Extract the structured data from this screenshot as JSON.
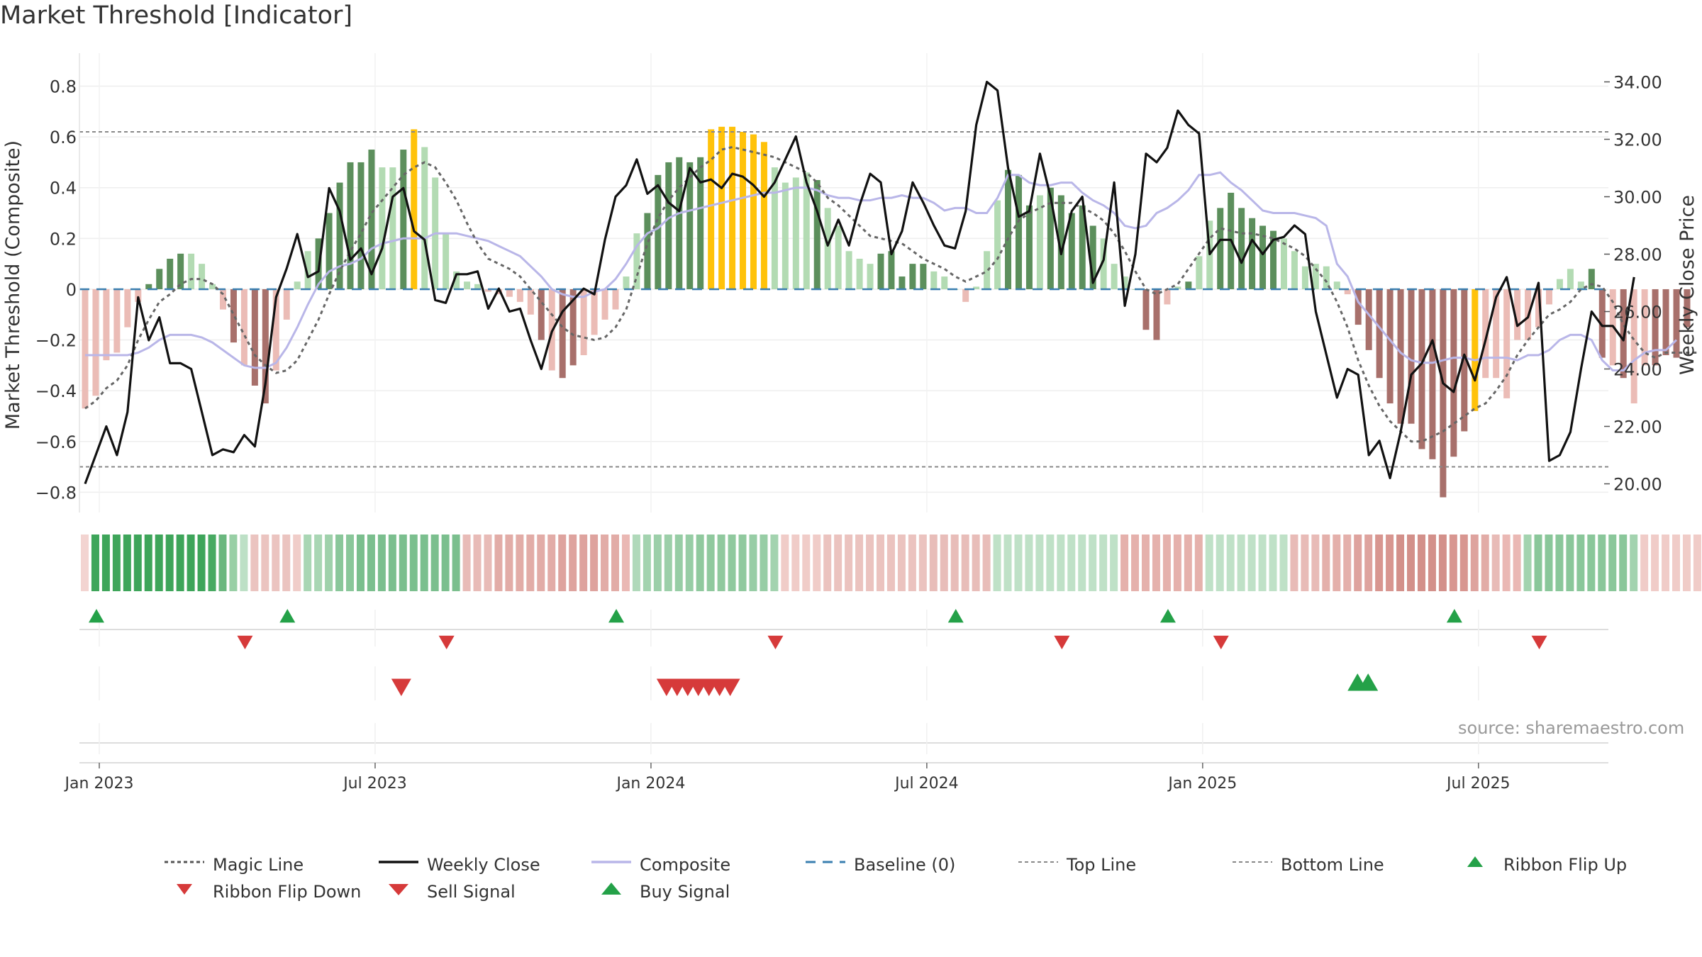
{
  "title": "Market Threshold [Indicator]",
  "source": "source: sharemaestro.com",
  "colors": {
    "grid": "#eeeeee",
    "strong_up": "#5c8f5c",
    "light_up": "#b3dbb3",
    "strong_down": "#a8706b",
    "light_down": "#ebbcb6",
    "highlight": "#ffc20a",
    "close": "#111111",
    "composite": "#b9b6e8",
    "magic": "#666666",
    "baseline": "#3a7fb0",
    "signal_green": "#24a148",
    "signal_red": "#d63a3a"
  },
  "chart_data": {
    "type": "bar+line",
    "title": "Market Threshold [Indicator]",
    "ylabel_left": "Market Threshold (Composite)",
    "ylabel_right": "Weekly Close Price",
    "ylim_left": [
      -0.88,
      0.93
    ],
    "ylim_right": [
      19.0,
      35.0
    ],
    "yticks_left": [
      0.8,
      0.6,
      0.4,
      0.2,
      0,
      -0.2,
      -0.4,
      -0.6,
      -0.8
    ],
    "yticks_left_labels": [
      "0.8",
      "0.6",
      "0.4",
      "0.2",
      "0",
      "−0.2",
      "−0.4",
      "−0.6",
      "−0.8"
    ],
    "yticks_right": [
      34.0,
      32.0,
      30.0,
      28.0,
      26.0,
      24.0,
      22.0,
      20.0
    ],
    "yticks_right_labels": [
      "34.00",
      "32.00",
      "30.00",
      "28.00",
      "26.00",
      "24.00",
      "22.00",
      "20.00"
    ],
    "x_ticks": [
      0,
      26,
      52,
      78,
      104,
      130
    ],
    "x_tick_labels": [
      "Jan 2023",
      "Jul 2023",
      "Jan 2024",
      "Jul 2024",
      "Jan 2025",
      "Jul 2025"
    ],
    "top_line": 0.62,
    "bottom_line": -0.7,
    "composite_bars": [
      -0.47,
      -0.42,
      -0.28,
      -0.25,
      -0.15,
      -0.05,
      0.02,
      0.08,
      0.12,
      0.14,
      0.14,
      0.1,
      0.02,
      -0.08,
      -0.21,
      -0.3,
      -0.38,
      -0.45,
      -0.32,
      -0.12,
      0.03,
      0.15,
      0.2,
      0.3,
      0.42,
      0.5,
      0.5,
      0.55,
      0.48,
      0.48,
      0.55,
      0.63,
      0.56,
      0.44,
      0.22,
      0.07,
      0.03,
      0.02,
      -0.01,
      -0.02,
      -0.03,
      -0.05,
      -0.1,
      -0.2,
      -0.32,
      -0.35,
      -0.3,
      -0.26,
      -0.18,
      -0.12,
      -0.08,
      0.05,
      0.22,
      0.3,
      0.45,
      0.5,
      0.52,
      0.5,
      0.52,
      0.63,
      0.64,
      0.64,
      0.62,
      0.61,
      0.58,
      0.48,
      0.42,
      0.44,
      0.46,
      0.43,
      0.32,
      0.25,
      0.15,
      0.12,
      0.1,
      0.14,
      0.15,
      0.05,
      0.1,
      0.1,
      0.07,
      0.05,
      0.0,
      -0.05,
      0.01,
      0.15,
      0.35,
      0.47,
      0.45,
      0.33,
      0.37,
      0.4,
      0.37,
      0.3,
      0.33,
      0.25,
      0.2,
      0.1,
      0.05,
      0.0,
      -0.16,
      -0.2,
      -0.06,
      0.01,
      0.03,
      0.13,
      0.27,
      0.32,
      0.38,
      0.32,
      0.28,
      0.25,
      0.23,
      0.2,
      0.15,
      0.09,
      0.1,
      0.09,
      0.03,
      -0.02,
      -0.14,
      -0.24,
      -0.35,
      -0.45,
      -0.53,
      -0.53,
      -0.63,
      -0.67,
      -0.82,
      -0.66,
      -0.56,
      -0.48,
      -0.35,
      -0.35,
      -0.43,
      -0.2,
      -0.2,
      -0.15,
      -0.06,
      0.04,
      0.08,
      0.03,
      0.08,
      -0.27,
      -0.3,
      -0.35,
      -0.45,
      -0.3,
      -0.3,
      -0.26,
      -0.27,
      -0.15
    ],
    "bar_highlight_indices": [
      31,
      59,
      60,
      61,
      62,
      63,
      64,
      131
    ],
    "bar_strong_indices": [
      6,
      7,
      8,
      9,
      14,
      16,
      17,
      22,
      23,
      24,
      25,
      26,
      27,
      30,
      43,
      45,
      46,
      53,
      54,
      55,
      56,
      57,
      58,
      69,
      75,
      76,
      77,
      78,
      79,
      87,
      88,
      89,
      91,
      92,
      93,
      94,
      95,
      100,
      101,
      104,
      107,
      108,
      109,
      110,
      111,
      112,
      120,
      121,
      122,
      123,
      124,
      125,
      126,
      127,
      128,
      129,
      130,
      142,
      143,
      145,
      148,
      149,
      150,
      151,
      152
    ],
    "weekly_close": [
      20.0,
      21.0,
      22.0,
      21.0,
      22.5,
      26.5,
      25.0,
      25.8,
      24.2,
      24.2,
      24.0,
      22.5,
      21.0,
      21.2,
      21.1,
      21.7,
      21.3,
      23.5,
      26.5,
      27.5,
      28.7,
      27.2,
      27.4,
      30.3,
      29.5,
      27.8,
      28.2,
      27.3,
      28.2,
      30.0,
      30.3,
      28.8,
      28.5,
      26.4,
      26.3,
      27.3,
      27.3,
      27.4,
      26.1,
      26.8,
      26.0,
      26.1,
      25.0,
      24.0,
      25.3,
      26.0,
      26.4,
      26.8,
      26.6,
      28.5,
      30.0,
      30.4,
      31.3,
      30.1,
      30.4,
      29.8,
      29.5,
      31.0,
      30.5,
      30.6,
      30.3,
      30.8,
      30.7,
      30.4,
      30.0,
      30.5,
      31.3,
      32.1,
      30.5,
      29.5,
      28.3,
      29.2,
      28.3,
      29.7,
      30.8,
      30.5,
      28.0,
      28.8,
      30.5,
      29.8,
      29.0,
      28.3,
      28.2,
      29.5,
      32.5,
      34.0,
      33.7,
      31.0,
      29.3,
      29.5,
      31.5,
      30.0,
      28.0,
      29.5,
      30.0,
      27.0,
      27.8,
      30.5,
      26.2,
      28.0,
      31.5,
      31.2,
      31.7,
      33.0,
      32.5,
      32.2,
      28.0,
      28.5,
      28.5,
      27.7,
      28.5,
      28.0,
      28.5,
      28.6,
      29.0,
      28.7,
      26.0,
      24.5,
      23.0,
      24.0,
      23.8,
      21.0,
      21.5,
      20.2,
      21.8,
      23.8,
      24.2,
      25.0,
      23.5,
      23.2,
      24.5,
      23.6,
      25.0,
      26.5,
      27.2,
      25.5,
      25.8,
      27.0,
      20.8,
      21.0,
      21.8,
      24.0,
      26.0,
      25.5,
      25.5,
      25.0,
      27.2
    ],
    "composite_line": [
      -0.26,
      -0.26,
      -0.26,
      -0.26,
      -0.26,
      -0.25,
      -0.23,
      -0.2,
      -0.18,
      -0.18,
      -0.18,
      -0.19,
      -0.21,
      -0.24,
      -0.27,
      -0.3,
      -0.31,
      -0.31,
      -0.29,
      -0.23,
      -0.15,
      -0.06,
      0.02,
      0.07,
      0.09,
      0.1,
      0.12,
      0.16,
      0.18,
      0.19,
      0.2,
      0.2,
      0.2,
      0.22,
      0.22,
      0.22,
      0.21,
      0.2,
      0.19,
      0.17,
      0.15,
      0.13,
      0.09,
      0.05,
      0.0,
      -0.02,
      -0.03,
      -0.03,
      -0.01,
      0.0,
      0.04,
      0.1,
      0.17,
      0.22,
      0.24,
      0.28,
      0.3,
      0.31,
      0.32,
      0.33,
      0.34,
      0.35,
      0.36,
      0.37,
      0.38,
      0.38,
      0.39,
      0.4,
      0.4,
      0.39,
      0.37,
      0.36,
      0.36,
      0.35,
      0.35,
      0.36,
      0.36,
      0.37,
      0.36,
      0.36,
      0.34,
      0.31,
      0.32,
      0.32,
      0.3,
      0.3,
      0.36,
      0.45,
      0.45,
      0.42,
      0.41,
      0.41,
      0.42,
      0.42,
      0.38,
      0.35,
      0.33,
      0.3,
      0.25,
      0.24,
      0.25,
      0.3,
      0.32,
      0.35,
      0.39,
      0.45,
      0.45,
      0.46,
      0.42,
      0.39,
      0.35,
      0.31,
      0.3,
      0.3,
      0.3,
      0.29,
      0.28,
      0.25,
      0.1,
      0.05,
      -0.05,
      -0.1,
      -0.15,
      -0.2,
      -0.25,
      -0.28,
      -0.29,
      -0.29,
      -0.28,
      -0.27,
      -0.27,
      -0.28,
      -0.27,
      -0.27,
      -0.27,
      -0.28,
      -0.26,
      -0.26,
      -0.24,
      -0.2,
      -0.18,
      -0.18,
      -0.2,
      -0.28,
      -0.32,
      -0.32,
      -0.28,
      -0.25,
      -0.24,
      -0.24,
      -0.2
    ],
    "magic_line": [
      -0.47,
      -0.44,
      -0.39,
      -0.36,
      -0.3,
      -0.2,
      -0.12,
      -0.05,
      -0.02,
      0.02,
      0.04,
      0.04,
      0.02,
      -0.02,
      -0.1,
      -0.18,
      -0.26,
      -0.3,
      -0.33,
      -0.32,
      -0.28,
      -0.2,
      -0.12,
      -0.02,
      0.07,
      0.15,
      0.22,
      0.3,
      0.35,
      0.4,
      0.45,
      0.48,
      0.5,
      0.48,
      0.42,
      0.35,
      0.26,
      0.18,
      0.12,
      0.1,
      0.08,
      0.05,
      0.0,
      -0.05,
      -0.1,
      -0.15,
      -0.18,
      -0.19,
      -0.2,
      -0.19,
      -0.15,
      -0.08,
      0.05,
      0.18,
      0.28,
      0.35,
      0.4,
      0.44,
      0.48,
      0.51,
      0.55,
      0.56,
      0.55,
      0.54,
      0.53,
      0.52,
      0.5,
      0.48,
      0.46,
      0.42,
      0.36,
      0.33,
      0.29,
      0.25,
      0.21,
      0.2,
      0.19,
      0.18,
      0.15,
      0.12,
      0.1,
      0.08,
      0.05,
      0.03,
      0.05,
      0.07,
      0.12,
      0.2,
      0.27,
      0.3,
      0.32,
      0.34,
      0.34,
      0.34,
      0.32,
      0.3,
      0.27,
      0.22,
      0.15,
      0.07,
      0.0,
      -0.02,
      0.0,
      0.02,
      0.08,
      0.14,
      0.2,
      0.24,
      0.23,
      0.22,
      0.22,
      0.21,
      0.2,
      0.18,
      0.16,
      0.13,
      0.08,
      0.03,
      -0.05,
      -0.15,
      -0.28,
      -0.38,
      -0.46,
      -0.52,
      -0.56,
      -0.6,
      -0.6,
      -0.58,
      -0.56,
      -0.53,
      -0.5,
      -0.47,
      -0.45,
      -0.4,
      -0.34,
      -0.26,
      -0.2,
      -0.15,
      -0.1,
      -0.08,
      -0.05,
      0.0,
      0.02,
      0.01,
      -0.05,
      -0.14,
      -0.2,
      -0.25,
      -0.27,
      -0.25,
      -0.25,
      -0.25,
      -0.25
    ],
    "ribbon_colors": [
      "#f3d4d1",
      "#3ea55a",
      "#3ea55a",
      "#3ea55a",
      "#3ea55a",
      "#3ea55a",
      "#3ea55a",
      "#3ea55a",
      "#3ea55a",
      "#3ea55a",
      "#3ea55a",
      "#3ea55a",
      "#48aa62",
      "#6ab77e",
      "#98cfa5",
      "#bde0c6",
      "#ebc4c0",
      "#ebc4c0",
      "#ebc4c0",
      "#ebc4c0",
      "#f0cdc9",
      "#a9d6b4",
      "#a9d6b4",
      "#9fd1ab",
      "#8ac79a",
      "#8ac79a",
      "#7bbf8e",
      "#7bbf8e",
      "#7bbf8e",
      "#7bbf8e",
      "#7bbf8e",
      "#7bbf8e",
      "#7bbf8e",
      "#7bbf8e",
      "#7bbf8e",
      "#7bbf8e",
      "#e8bbb7",
      "#e8bbb7",
      "#e8bbb7",
      "#e2aca7",
      "#e2aca7",
      "#e2aca7",
      "#e2aca7",
      "#e2aca7",
      "#e2aca7",
      "#dea39e",
      "#dea39e",
      "#dea39e",
      "#dea39e",
      "#e2aca7",
      "#e2aca7",
      "#eab8b4",
      "#b0d9ba",
      "#a3d3af",
      "#9ccfa9",
      "#9ccfa9",
      "#97cda5",
      "#97cda5",
      "#90c99e",
      "#90c99e",
      "#90c99e",
      "#90c99e",
      "#90c99e",
      "#97cda5",
      "#97cda5",
      "#a3d3af",
      "#f0ccc8",
      "#f0ccc8",
      "#f0ccc8",
      "#f0ccc8",
      "#ebc3bf",
      "#ebc3bf",
      "#ebc3bf",
      "#ebc3bf",
      "#ebc3bf",
      "#ebc3bf",
      "#ebc3bf",
      "#ebc3bf",
      "#ebc3bf",
      "#ebc3bf",
      "#e8bdb9",
      "#e8bdb9",
      "#e8bdb9",
      "#e8bdb9",
      "#e8bdb9",
      "#e8bdb9",
      "#bfe1c7",
      "#bfe1c7",
      "#bfe1c7",
      "#bfe1c7",
      "#bfe1c7",
      "#bfe1c7",
      "#bfe1c7",
      "#bfe1c7",
      "#bfe1c7",
      "#bfe1c7",
      "#bfe1c7",
      "#bfe1c7",
      "#e5b1ac",
      "#e5b1ac",
      "#e5b1ac",
      "#e5b1ac",
      "#e5b1ac",
      "#e5b1ac",
      "#e5b1ac",
      "#e5b1ac",
      "#bfe1c7",
      "#bfe1c7",
      "#bfe1c7",
      "#bfe1c7",
      "#bfe1c7",
      "#bfe1c7",
      "#bfe1c7",
      "#bfe1c7",
      "#e8bbb7",
      "#e8bbb7",
      "#e8bbb7",
      "#e4b0ab",
      "#e4b0ab",
      "#e4b0ab",
      "#dea39e",
      "#dea39e",
      "#d89690",
      "#d89690",
      "#d3908a",
      "#d3908a",
      "#d3908a",
      "#d3908a",
      "#d3908a",
      "#d89690",
      "#d89690",
      "#dea39e",
      "#e2aca7",
      "#e8bbb7",
      "#eab8b4",
      "#eab8b4",
      "#a3d3af",
      "#8ac79a",
      "#8ac79a",
      "#8ac79a",
      "#8ac79a",
      "#8ac79a",
      "#8ac79a",
      "#8ac79a",
      "#8ac79a",
      "#8ac79a",
      "#a3d3af",
      "#f0ccc8",
      "#f0ccc8",
      "#f0ccc8",
      "#f0ccc8",
      "#f0ccc8",
      "#f0ccc8",
      "#f0ccc8"
    ],
    "ribbon_flip_up_weeks": [
      0,
      18,
      49,
      81,
      101,
      128
    ],
    "ribbon_flip_down_weeks": [
      14,
      33,
      64,
      91,
      106,
      136
    ],
    "sell_signal_weeks": [
      29,
      54,
      55,
      56,
      57,
      58,
      59,
      60
    ],
    "buy_signal_weeks": [
      119,
      120
    ],
    "legend": [
      "Magic Line",
      "Weekly Close",
      "Composite",
      "Baseline (0)",
      "Top Line",
      "Bottom Line",
      "Ribbon Flip Up",
      "Ribbon Flip Down",
      "Sell Signal",
      "Buy Signal"
    ]
  }
}
